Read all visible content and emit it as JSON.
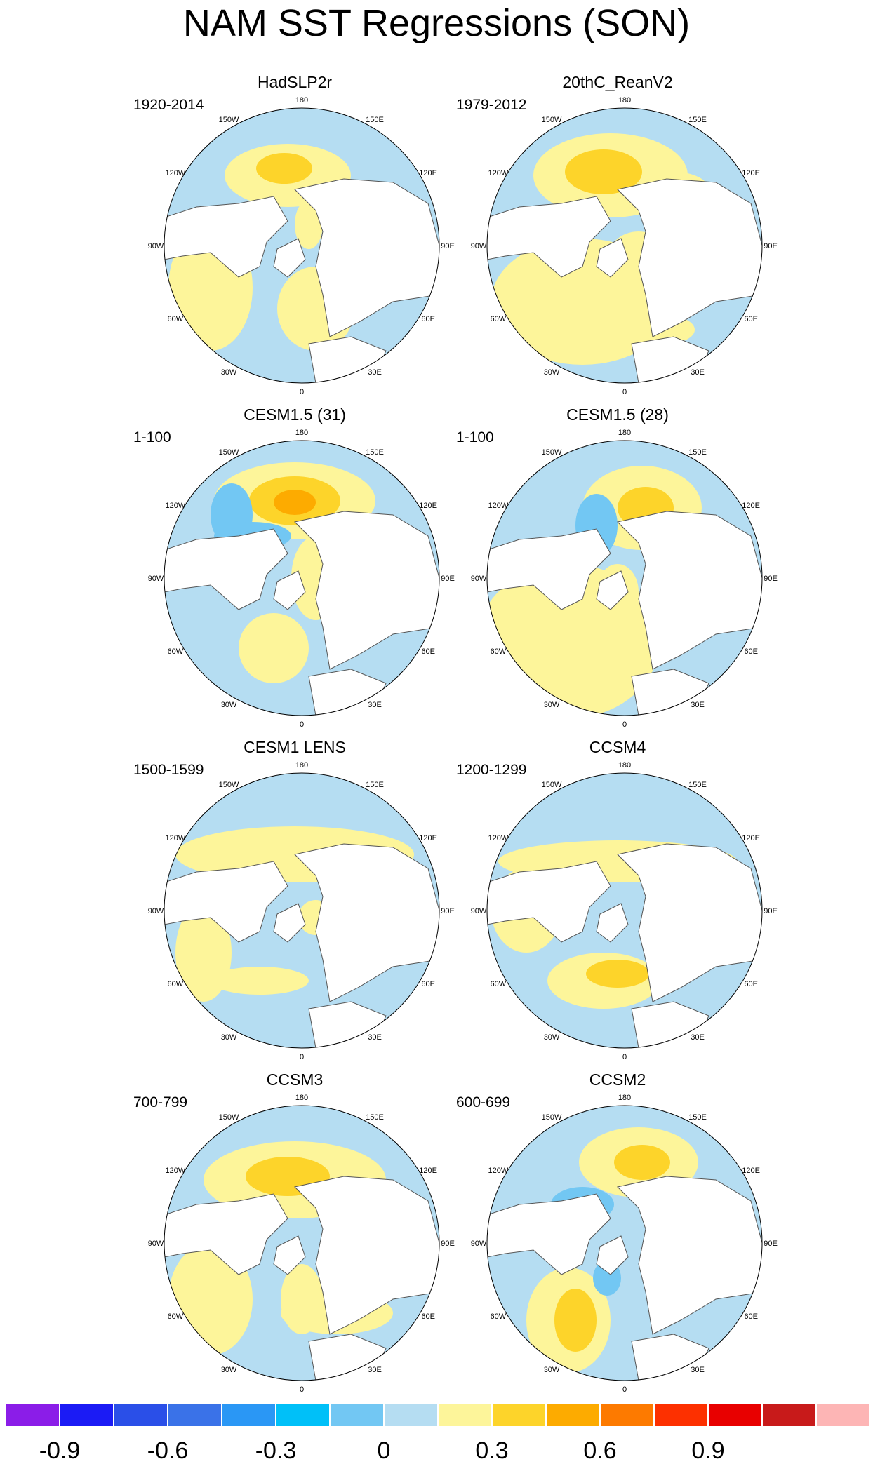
{
  "title": "NAM SST Regressions (SON)",
  "chart_data": [
    {
      "type": "map",
      "title": "HadSLP2r",
      "period": "1920-2014"
    },
    {
      "type": "map",
      "title": "20thC_ReanV2",
      "period": "1979-2012"
    },
    {
      "type": "map",
      "title": "CESM1.5 (31)",
      "period": "1-100"
    },
    {
      "type": "map",
      "title": "CESM1.5 (28)",
      "period": "1-100"
    },
    {
      "type": "map",
      "title": "CESM1 LENS",
      "period": "1500-1599"
    },
    {
      "type": "map",
      "title": "CCSM4",
      "period": "1200-1299"
    },
    {
      "type": "map",
      "title": "CCSM3",
      "period": "700-799"
    },
    {
      "type": "map",
      "title": "CCSM2",
      "period": "600-699"
    }
  ],
  "map_labels": [
    "180",
    "150E",
    "120E",
    "90E",
    "60E",
    "30E",
    "0",
    "30W",
    "60W",
    "90W",
    "120W",
    "150W"
  ],
  "colorbar": {
    "colors": [
      "#8b1de8",
      "#1b1bf5",
      "#2a4fe8",
      "#3a72e8",
      "#2a97f5",
      "#00c0f8",
      "#72c7f3",
      "#b5ddf2",
      "#fdf59a",
      "#fdd42a",
      "#fdab00",
      "#fd7a00",
      "#fd3000",
      "#e80000",
      "#c81a1a",
      "#fdb5b5"
    ],
    "labels": [
      "-0.9",
      "-0.6",
      "-0.3",
      "0",
      "0.3",
      "0.6",
      "0.9"
    ],
    "label_values": [
      -0.9,
      -0.6,
      -0.3,
      0,
      0.3,
      0.6,
      0.9
    ],
    "min": -1.05,
    "max": 1.2,
    "step": 0.15
  }
}
